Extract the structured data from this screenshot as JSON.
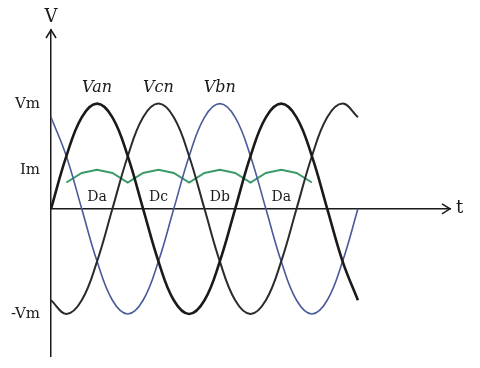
{
  "chart_data": {
    "type": "line",
    "x_label": "t",
    "y_label": "V",
    "x": [
      0,
      30,
      60,
      90,
      120,
      150,
      180,
      210,
      240,
      270,
      300,
      330,
      360,
      390,
      420,
      450,
      480,
      510,
      540,
      570,
      600
    ],
    "xlim": [
      0,
      780
    ],
    "ylim": [
      -1.4,
      1.7
    ],
    "yticks": [
      {
        "value": -1,
        "label": "-Vm"
      },
      {
        "value": 0.37,
        "label": "Im"
      },
      {
        "value": 1,
        "label": "Vm"
      }
    ],
    "grid": false,
    "tick_labels": "y",
    "series": [
      {
        "name": "Van",
        "color": "#1a1a1a",
        "values": [
          0,
          0.5,
          0.87,
          1,
          0.87,
          0.5,
          0,
          -0.5,
          -0.87,
          -1,
          -0.87,
          -0.5,
          0,
          0.5,
          0.87,
          1,
          0.87,
          0.5,
          0,
          -0.5,
          -0.87
        ]
      },
      {
        "name": "Vcn",
        "color": "#2b2b2b",
        "values": [
          -0.87,
          -1,
          -0.87,
          -0.5,
          0,
          0.5,
          0.87,
          1,
          0.87,
          0.5,
          0,
          -0.5,
          -0.87,
          -1,
          -0.87,
          -0.5,
          0,
          0.5,
          0.87,
          1,
          0.87
        ]
      },
      {
        "name": "Vbn",
        "color": "#4a5a9a",
        "values": [
          0.87,
          0.5,
          0,
          -0.5,
          -0.87,
          -1,
          -0.87,
          -0.5,
          0,
          0.5,
          0.87,
          1,
          0.87,
          0.5,
          0,
          -0.5,
          -0.87,
          -1,
          -0.87,
          -0.5,
          0
        ]
      },
      {
        "color": "#3a9a6a",
        "values": [
          null,
          0.25,
          0.34,
          0.37,
          0.34,
          0.25,
          0.34,
          0.37,
          0.34,
          0.25,
          0.34,
          0.37,
          0.34,
          0.25,
          0.34,
          0.37,
          0.34,
          0.25,
          null,
          null,
          null
        ]
      }
    ],
    "conduction": [
      {
        "label": "Da",
        "start": 30,
        "end": 150
      },
      {
        "label": "Dc",
        "start": 150,
        "end": 270
      },
      {
        "label": "Db",
        "start": 270,
        "end": 390
      },
      {
        "label": "Da",
        "start": 390,
        "end": 510
      }
    ]
  }
}
